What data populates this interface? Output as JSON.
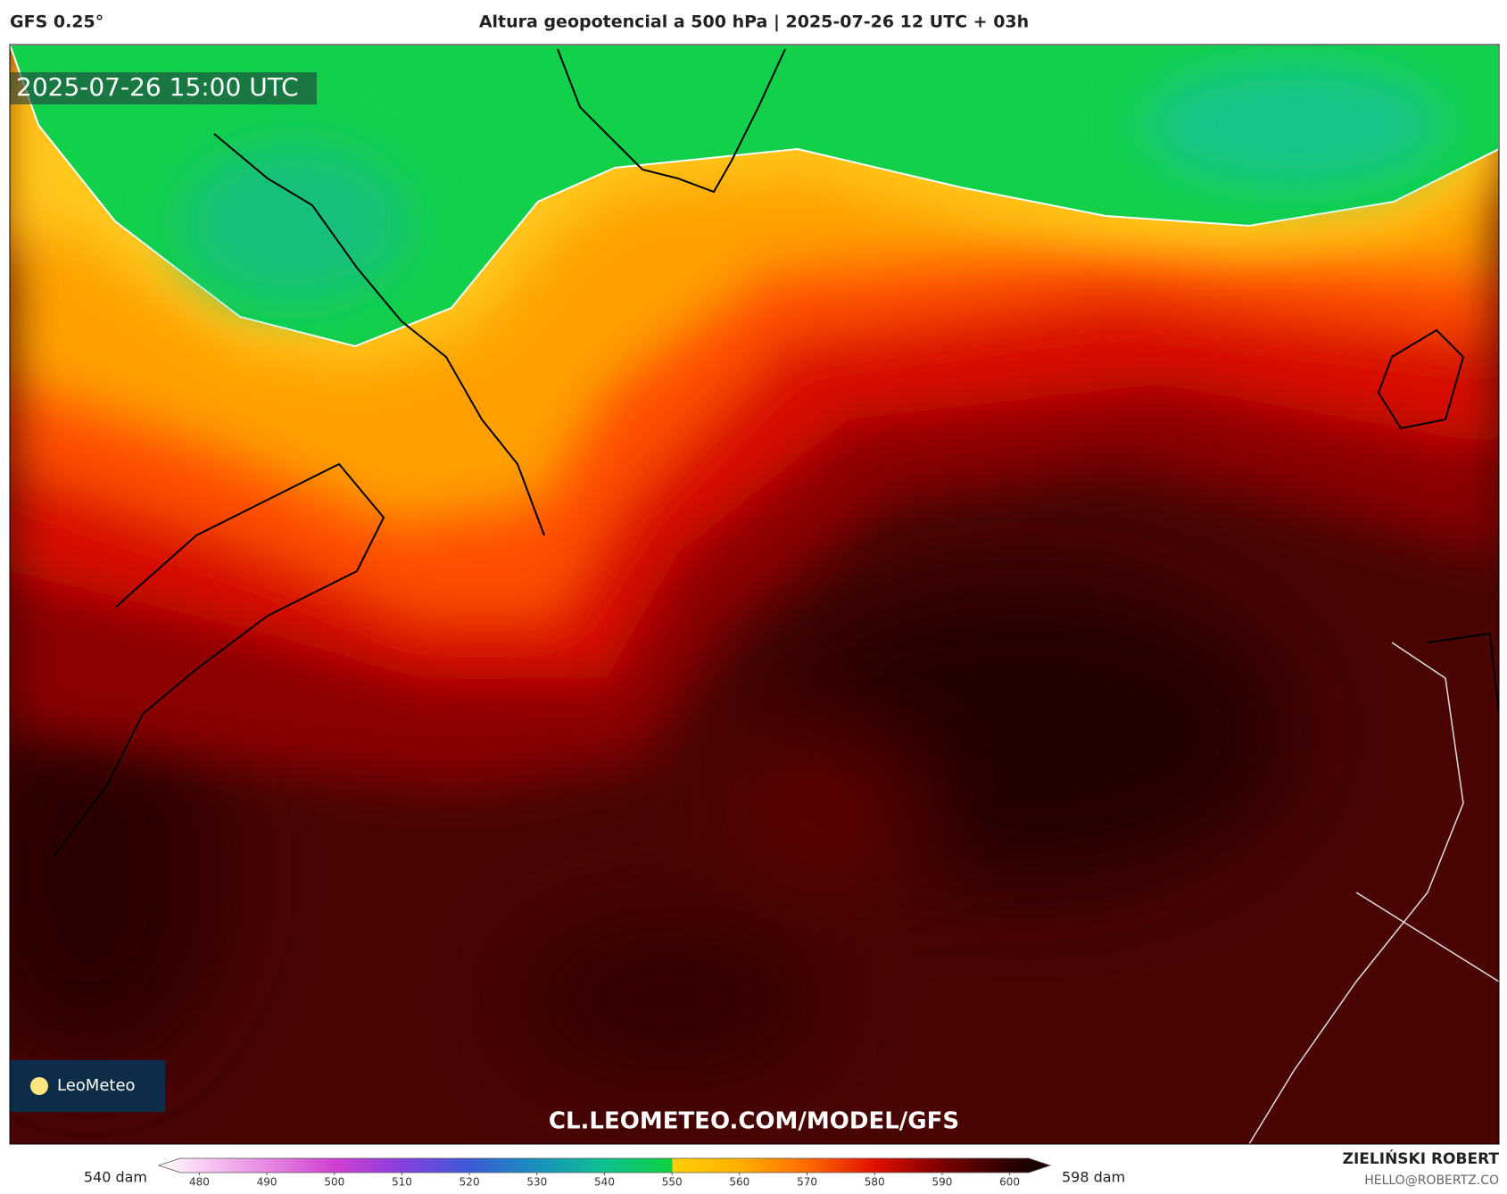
{
  "header": {
    "model": "GFS 0.25°",
    "title": "Altura geopotencial a 500 hPa | 2025-07-26 12 UTC + 03h"
  },
  "map": {
    "valid_time": "2025-07-26 15:00 UTC",
    "url": "CL.LEOMETEO.COM/MODEL/GFS",
    "logo": "LeoMeteo"
  },
  "colorbar": {
    "min_label": "540 dam",
    "max_label": "598 dam",
    "lim": [
      474,
      606
    ],
    "ticks": [
      480,
      490,
      500,
      510,
      520,
      530,
      540,
      550,
      560,
      570,
      580,
      590,
      600
    ]
  },
  "credit": {
    "author": "ZIELIŃSKI ROBERT",
    "email": "HELLO@ROBERTZ.CO"
  }
}
